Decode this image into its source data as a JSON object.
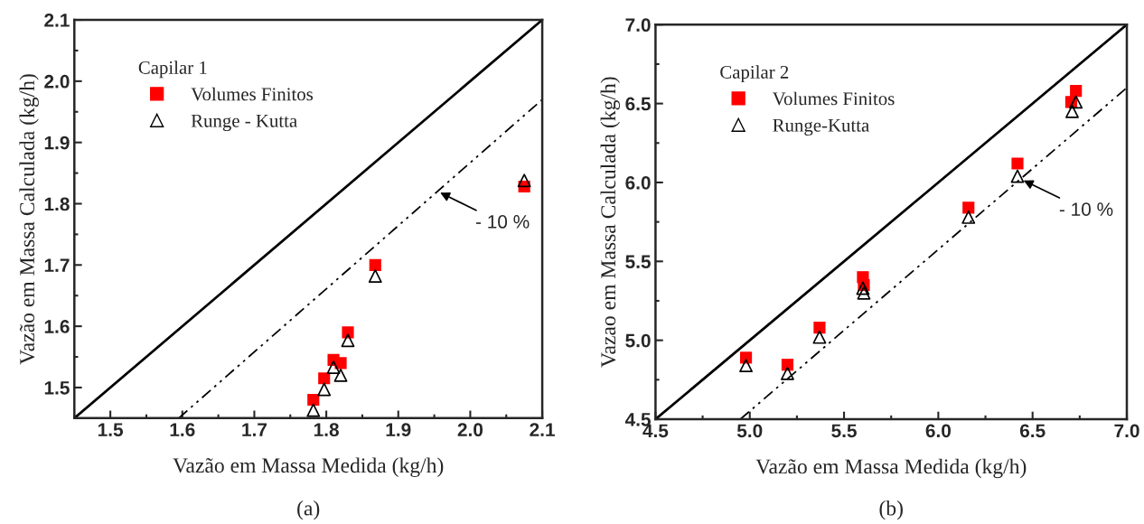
{
  "chart_data": [
    {
      "type": "scatter",
      "xlabel": "Vazão em Massa Medida (kg/h)",
      "ylabel": "Vazão em Massa Calculada (kg/h)",
      "legend_title": "Capilar 1",
      "legend": "top left",
      "xlim": [
        1.45,
        2.1
      ],
      "ylim": [
        1.45,
        2.1
      ],
      "xticks": [
        1.5,
        1.6,
        1.7,
        1.8,
        1.9,
        {
          "value": 2,
          "label": "2.0"
        },
        2.1
      ],
      "yticks": [
        1.5,
        1.6,
        1.7,
        1.8,
        1.9,
        {
          "value": 2,
          "label": "2.0"
        },
        2.1
      ],
      "grid": false,
      "series": [
        {
          "type": "line",
          "color": "#000000",
          "line_style": "solid",
          "marker": "none",
          "x": [
            1.45,
            2.1
          ],
          "values": [
            1.45,
            2.1
          ]
        },
        {
          "type": "line",
          "color": "#000000",
          "line_style": "dashdot",
          "marker": "none",
          "x": [
            1.595,
            2.1
          ],
          "values": [
            1.45,
            1.97
          ]
        },
        {
          "name": "Volumes Finitos",
          "color": "#ff0000",
          "marker": "square",
          "x": [
            1.782,
            1.797,
            1.81,
            1.82,
            1.83,
            1.868,
            2.075
          ],
          "values": [
            1.48,
            1.515,
            1.545,
            1.54,
            1.59,
            1.7,
            1.828
          ]
        },
        {
          "name": "Runge - Kutta",
          "color": "#000000",
          "marker": "triangle",
          "x": [
            1.782,
            1.797,
            1.81,
            1.82,
            1.83,
            1.868,
            2.075
          ],
          "values": [
            1.463,
            1.497,
            1.533,
            1.52,
            1.577,
            1.682,
            1.838
          ]
        }
      ],
      "annotations": [
        {
          "text": "- 10 %",
          "x": 1.955,
          "y": 1.82
        },
        "(a)"
      ]
    },
    {
      "type": "scatter",
      "xlabel": "Vazão em Massa Medida (kg/h)",
      "ylabel": "Vazao em Massa Calculada (kg/h)",
      "legend_title": "Capilar 2",
      "legend": "top left",
      "xlim": [
        4.5,
        7.0
      ],
      "ylim": [
        4.5,
        7.0
      ],
      "xticks": [
        4.5,
        {
          "value": 5,
          "label": "5.0"
        },
        5.5,
        {
          "value": 6,
          "label": "6.0"
        },
        6.5,
        {
          "value": 7,
          "label": "7.0"
        }
      ],
      "yticks": [
        4.5,
        {
          "value": 5,
          "label": "5.0"
        },
        5.5,
        {
          "value": 6,
          "label": "6.0"
        },
        6.5,
        {
          "value": 7,
          "label": "7.0"
        }
      ],
      "grid": false,
      "series": [
        {
          "type": "line",
          "color": "#000000",
          "line_style": "solid",
          "marker": "none",
          "x": [
            4.5,
            7.0
          ],
          "values": [
            4.5,
            7.0
          ]
        },
        {
          "type": "line",
          "color": "#000000",
          "line_style": "dashdot",
          "marker": "none",
          "x": [
            4.95,
            7.0
          ],
          "values": [
            4.5,
            6.6
          ]
        },
        {
          "name": "Volumes Finitos",
          "color": "#ff0000",
          "marker": "square",
          "x": [
            4.98,
            5.2,
            5.37,
            5.6,
            5.605,
            6.16,
            6.42,
            6.705,
            6.73
          ],
          "values": [
            4.89,
            4.845,
            5.08,
            5.4,
            5.35,
            5.84,
            6.12,
            6.51,
            6.58
          ]
        },
        {
          "name": "Runge-Kutta",
          "color": "#000000",
          "marker": "triangle",
          "x": [
            4.98,
            5.2,
            5.37,
            5.6,
            5.605,
            6.16,
            6.42,
            6.71,
            6.73
          ],
          "values": [
            4.84,
            4.79,
            5.02,
            5.33,
            5.3,
            5.78,
            6.04,
            6.45,
            6.51
          ]
        }
      ],
      "annotations": [
        {
          "text": "- 10 %",
          "x": 6.44,
          "y": 6.02
        },
        "(b)"
      ]
    }
  ]
}
